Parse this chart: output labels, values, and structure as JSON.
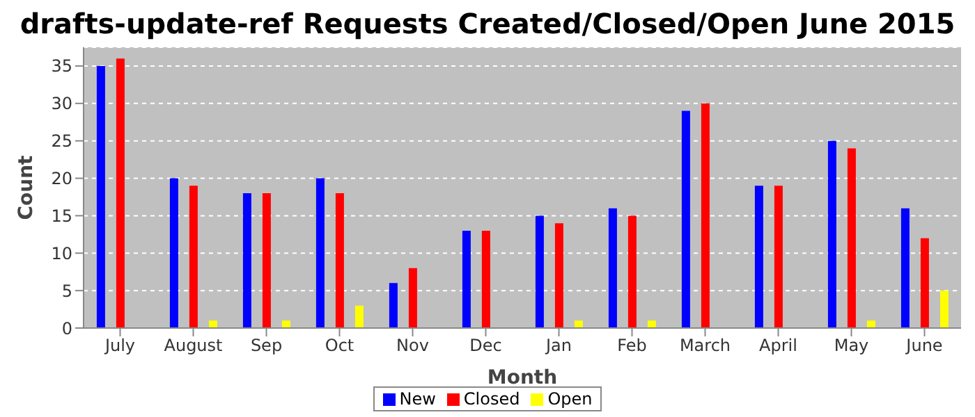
{
  "chart_data": {
    "type": "bar",
    "title": "drafts-update-ref Requests Created/Closed/Open June 2015",
    "xlabel": "Month",
    "ylabel": "Count",
    "categories": [
      "July",
      "August",
      "Sep",
      "Oct",
      "Nov",
      "Dec",
      "Jan",
      "Feb",
      "March",
      "April",
      "May",
      "June"
    ],
    "series": [
      {
        "name": "New",
        "color": "#0000ff",
        "values": [
          35,
          20,
          18,
          20,
          6,
          13,
          15,
          16,
          29,
          19,
          25,
          16
        ]
      },
      {
        "name": "Closed",
        "color": "#ff0000",
        "values": [
          36,
          19,
          18,
          18,
          8,
          13,
          14,
          15,
          30,
          19,
          24,
          12
        ]
      },
      {
        "name": "Open",
        "color": "#ffff00",
        "values": [
          0,
          1,
          1,
          3,
          0,
          0,
          1,
          1,
          0,
          0,
          1,
          5
        ]
      }
    ],
    "ylim": [
      0,
      37.5
    ],
    "yticks": [
      0,
      5,
      10,
      15,
      20,
      25,
      30,
      35
    ],
    "grid": "y",
    "legend": "bottom"
  }
}
